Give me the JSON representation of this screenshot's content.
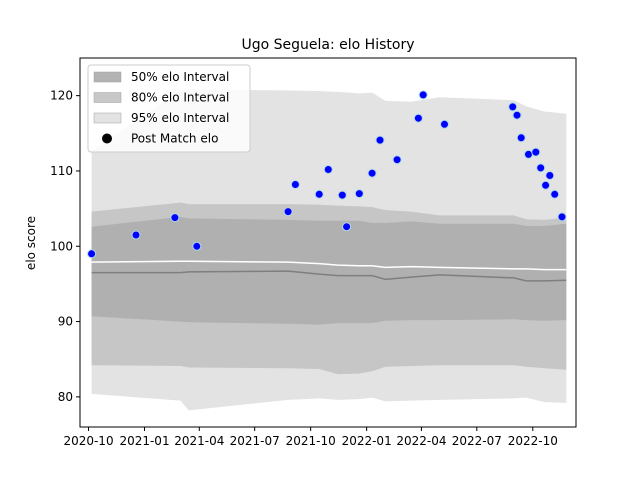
{
  "chart_data": {
    "type": "line",
    "title": "Ugo Seguela: elo History",
    "xlabel": "",
    "ylabel": "elo score",
    "x_tick_labels": [
      "2020-10",
      "2021-01",
      "2021-04",
      "2021-07",
      "2021-10",
      "2022-01",
      "2022-04",
      "2022-07",
      "2022-10"
    ],
    "x_tick_dates": [
      "2020-10-01",
      "2021-01-01",
      "2021-04-01",
      "2021-07-01",
      "2021-10-01",
      "2022-01-01",
      "2022-04-01",
      "2022-07-01",
      "2022-10-01"
    ],
    "xlim": [
      "2020-09-17",
      "2022-12-11"
    ],
    "y_ticks": [
      80,
      90,
      100,
      110,
      120
    ],
    "ylim": [
      76,
      125
    ],
    "grid": false,
    "legend_position": "upper-left",
    "legend": [
      {
        "label": "50% elo Interval",
        "color": "#b3b3b3"
      },
      {
        "label": "80% elo Interval",
        "color": "#c8c8c8"
      },
      {
        "label": "95% elo Interval",
        "color": "#e3e3e3"
      },
      {
        "label": "Post Match elo",
        "color": "#000000"
      }
    ],
    "colors": {
      "band95": "#e3e3e3",
      "band80": "#c6c6c6",
      "band50": "#b0b0b0",
      "median_line": "#7f7f7f",
      "mean_line": "#ffffff",
      "points": "#0000ff",
      "point_edge": "#add8e6"
    },
    "series": [
      {
        "name": "95% elo Interval",
        "kind": "band",
        "x": [
          "2020-10-06",
          "2021-03-01",
          "2021-03-15",
          "2021-08-25",
          "2021-10-15",
          "2021-11-15",
          "2021-12-20",
          "2022-01-10",
          "2022-02-01",
          "2022-03-15",
          "2022-05-01",
          "2022-08-31",
          "2022-09-20",
          "2022-10-20",
          "2022-11-25"
        ],
        "lower": [
          80.4,
          79.5,
          78.2,
          79.6,
          79.8,
          79.6,
          79.7,
          79.9,
          79.4,
          79.5,
          79.6,
          79.8,
          79.9,
          79.3,
          79.2
        ],
        "upper": [
          112.6,
          120.7,
          120.8,
          120.7,
          120.6,
          120.5,
          120.3,
          120.4,
          119.3,
          119.2,
          119.8,
          119.4,
          118.6,
          117.9,
          117.6
        ]
      },
      {
        "name": "80% elo Interval",
        "kind": "band",
        "x": [
          "2020-10-06",
          "2021-03-01",
          "2021-03-15",
          "2021-08-25",
          "2021-10-15",
          "2021-11-15",
          "2021-12-20",
          "2022-01-10",
          "2022-02-01",
          "2022-03-15",
          "2022-05-01",
          "2022-08-31",
          "2022-09-20",
          "2022-10-20",
          "2022-11-25"
        ],
        "lower": [
          84.2,
          84.1,
          83.9,
          83.8,
          83.7,
          83.0,
          83.1,
          83.4,
          84.0,
          84.1,
          84.2,
          84.2,
          84.0,
          83.8,
          83.6
        ],
        "upper": [
          104.6,
          105.8,
          105.6,
          105.6,
          105.5,
          105.4,
          105.3,
          105.2,
          104.8,
          104.6,
          104.1,
          104.1,
          103.6,
          103.5,
          103.8
        ]
      },
      {
        "name": "50% elo Interval",
        "kind": "band",
        "x": [
          "2020-10-06",
          "2021-03-01",
          "2021-03-15",
          "2021-08-25",
          "2021-10-15",
          "2021-11-15",
          "2021-12-20",
          "2022-01-10",
          "2022-02-01",
          "2022-03-15",
          "2022-05-01",
          "2022-08-31",
          "2022-09-20",
          "2022-10-20",
          "2022-11-25"
        ],
        "lower": [
          90.7,
          90.0,
          89.9,
          89.7,
          89.6,
          89.8,
          89.8,
          89.8,
          90.1,
          90.2,
          90.2,
          90.3,
          90.2,
          90.1,
          90.2
        ],
        "upper": [
          102.6,
          103.9,
          103.7,
          103.5,
          103.4,
          103.4,
          103.4,
          103.1,
          103.1,
          103.3,
          103.0,
          103.0,
          102.7,
          102.7,
          103.0
        ]
      },
      {
        "name": "Median",
        "kind": "line",
        "x": [
          "2020-10-06",
          "2021-03-01",
          "2021-03-15",
          "2021-08-25",
          "2021-10-15",
          "2021-11-15",
          "2021-12-20",
          "2022-01-10",
          "2022-02-01",
          "2022-03-15",
          "2022-05-01",
          "2022-08-31",
          "2022-09-20",
          "2022-10-20",
          "2022-11-25"
        ],
        "values": [
          96.5,
          96.5,
          96.6,
          96.7,
          96.3,
          96.1,
          96.1,
          96.1,
          95.6,
          95.9,
          96.2,
          95.8,
          95.4,
          95.4,
          95.5
        ]
      },
      {
        "name": "Mean",
        "kind": "line",
        "x": [
          "2020-10-06",
          "2021-03-01",
          "2021-03-15",
          "2021-08-25",
          "2021-10-15",
          "2021-11-15",
          "2021-12-20",
          "2022-01-10",
          "2022-02-01",
          "2022-03-15",
          "2022-05-01",
          "2022-08-31",
          "2022-09-20",
          "2022-10-20",
          "2022-11-25"
        ],
        "values": [
          97.9,
          98.0,
          98.0,
          97.9,
          97.7,
          97.5,
          97.4,
          97.4,
          97.2,
          97.3,
          97.2,
          97.0,
          97.0,
          96.9,
          96.9
        ]
      },
      {
        "name": "Post Match elo",
        "kind": "scatter",
        "x": [
          "2020-10-06",
          "2020-12-18",
          "2021-02-20",
          "2021-03-28",
          "2021-08-25",
          "2021-09-06",
          "2021-10-15",
          "2021-10-30",
          "2021-11-22",
          "2021-11-29",
          "2021-12-20",
          "2022-01-10",
          "2022-01-23",
          "2022-02-20",
          "2022-03-27",
          "2022-04-04",
          "2022-05-09",
          "2022-08-29",
          "2022-09-05",
          "2022-09-12",
          "2022-09-24",
          "2022-10-06",
          "2022-10-14",
          "2022-10-22",
          "2022-10-29",
          "2022-11-06",
          "2022-11-18"
        ],
        "values": [
          99.0,
          101.5,
          103.8,
          100.0,
          104.6,
          108.2,
          106.9,
          110.2,
          106.8,
          102.6,
          107.0,
          109.7,
          114.1,
          111.5,
          117.0,
          120.1,
          116.2,
          118.5,
          117.4,
          114.4,
          112.2,
          112.5,
          110.4,
          108.1,
          109.4,
          106.9,
          103.9
        ]
      }
    ]
  }
}
